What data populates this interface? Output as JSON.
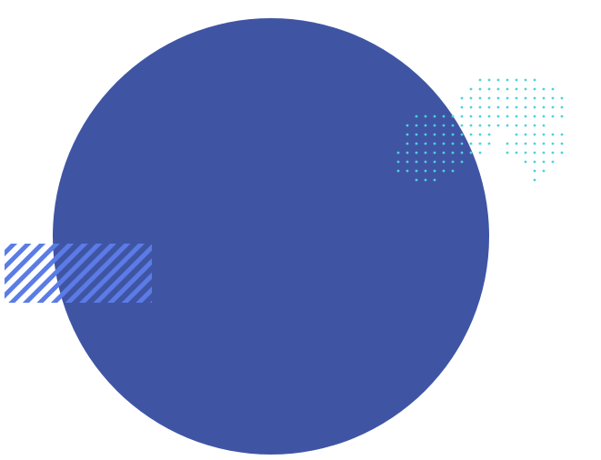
{
  "colors": {
    "background": "#ffffff",
    "circle": "#3f55a4",
    "stripes": "#5b7ce6",
    "dots": "#4fd0dc"
  }
}
